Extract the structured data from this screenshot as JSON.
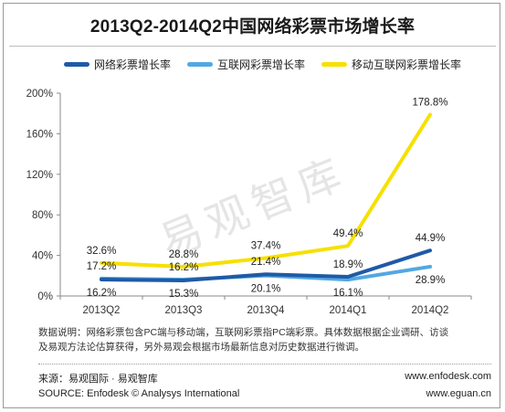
{
  "chart_data": {
    "type": "line",
    "title": "2013Q2-2014Q2中国网络彩票市场增长率",
    "categories": [
      "2013Q2",
      "2013Q3",
      "2013Q4",
      "2014Q1",
      "2014Q2"
    ],
    "y_ticks": [
      "0%",
      "40%",
      "80%",
      "120%",
      "160%",
      "200%"
    ],
    "ylim": [
      0,
      200
    ],
    "unit": "%",
    "grid": false,
    "legend_position": "top",
    "series": [
      {
        "name": "网络彩票增长率",
        "color": "#1f5aa6",
        "values": [
          16.2,
          15.3,
          21.4,
          18.9,
          44.9
        ],
        "labels": [
          "16.2%",
          "15.3%",
          "21.4%",
          "18.9%",
          "44.9%"
        ]
      },
      {
        "name": "互联网彩票增长率",
        "color": "#52a8e2",
        "values": [
          17.2,
          16.2,
          20.1,
          16.1,
          28.9
        ],
        "labels": [
          "17.2%",
          "16.2%",
          "20.1%",
          "16.1%",
          "28.9%"
        ]
      },
      {
        "name": "移动互联网彩票增长率",
        "color": "#f7e000",
        "values": [
          32.6,
          28.8,
          37.4,
          49.4,
          178.8
        ],
        "labels": [
          "32.6%",
          "28.8%",
          "37.4%",
          "49.4%",
          "178.8%"
        ]
      }
    ],
    "watermark": "易观智库"
  },
  "notes": {
    "line1": "数据说明：网络彩票包含PC端与移动端，互联网彩票指PC端彩票。具体数据根据企业调研、访谈",
    "line2": "及易观方法论估算获得，另外易观会根据市场最新信息对历史数据进行微调。"
  },
  "footer": {
    "source_cn": "来源：易观国际 · 易观智库",
    "site1": "www.enfodesk.com",
    "source_en": "SOURCE: Enfodesk © Analysys International",
    "site2": "www.eguan.cn"
  }
}
